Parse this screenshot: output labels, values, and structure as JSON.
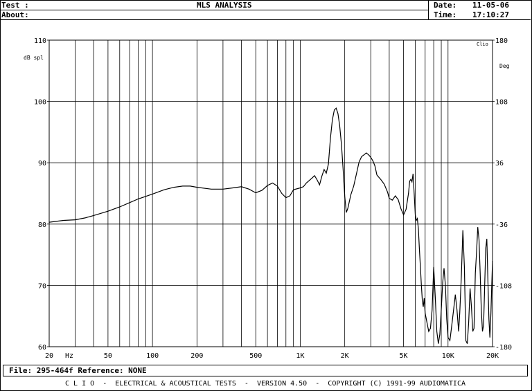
{
  "header": {
    "test_label": "Test :",
    "about_label": "About:",
    "title": "MLS ANALYSIS",
    "date_label": "Date:",
    "date_value": "11-05-06",
    "time_label": "Time:",
    "time_value": "17:10:27"
  },
  "file_bar": {
    "text": "File: 295-464f Reference: NONE"
  },
  "footer": {
    "text": "C L I O  -  ELECTRICAL & ACOUSTICAL TESTS  -  VERSION 4.50  -  COPYRIGHT (C) 1991-99 AUDIOMATICA"
  },
  "chart_data": {
    "type": "line",
    "x_scale": "log",
    "xlim": [
      20,
      20000
    ],
    "ylim": [
      60,
      110
    ],
    "y2lim": [
      -180,
      180
    ],
    "grid": true,
    "xlabel": "Hz",
    "ylabel": "dB spl",
    "y2label": "Deg",
    "corner_label": "Clio",
    "x_ticks": [
      {
        "v": 20,
        "label": "20"
      },
      {
        "v": 50,
        "label": "50"
      },
      {
        "v": 100,
        "label": "100"
      },
      {
        "v": 200,
        "label": "200"
      },
      {
        "v": 500,
        "label": "500"
      },
      {
        "v": 1000,
        "label": "1K"
      },
      {
        "v": 2000,
        "label": "2K"
      },
      {
        "v": 5000,
        "label": "5K"
      },
      {
        "v": 10000,
        "label": "10K"
      },
      {
        "v": 20000,
        "label": "20K"
      }
    ],
    "y_ticks": [
      60,
      70,
      80,
      90,
      100,
      110
    ],
    "y2_ticks": [
      -180,
      -108,
      -36,
      36,
      108,
      180
    ],
    "series": [
      {
        "color": "#000000",
        "points": [
          [
            20,
            80.3
          ],
          [
            25,
            80.6
          ],
          [
            30,
            80.7
          ],
          [
            35,
            81
          ],
          [
            40,
            81.4
          ],
          [
            50,
            82.1
          ],
          [
            60,
            82.8
          ],
          [
            70,
            83.5
          ],
          [
            80,
            84.1
          ],
          [
            100,
            84.9
          ],
          [
            120,
            85.6
          ],
          [
            140,
            86
          ],
          [
            160,
            86.2
          ],
          [
            180,
            86.2
          ],
          [
            200,
            86
          ],
          [
            250,
            85.7
          ],
          [
            300,
            85.7
          ],
          [
            350,
            85.9
          ],
          [
            400,
            86.1
          ],
          [
            450,
            85.7
          ],
          [
            500,
            85.1
          ],
          [
            550,
            85.5
          ],
          [
            600,
            86.3
          ],
          [
            650,
            86.7
          ],
          [
            700,
            86.2
          ],
          [
            750,
            85
          ],
          [
            800,
            84.3
          ],
          [
            850,
            84.6
          ],
          [
            900,
            85.6
          ],
          [
            1000,
            85.9
          ],
          [
            1050,
            86.1
          ],
          [
            1100,
            86.7
          ],
          [
            1200,
            87.5
          ],
          [
            1250,
            87.9
          ],
          [
            1300,
            87.2
          ],
          [
            1350,
            86.4
          ],
          [
            1400,
            87.8
          ],
          [
            1450,
            88.9
          ],
          [
            1500,
            88.3
          ],
          [
            1550,
            89.8
          ],
          [
            1600,
            94
          ],
          [
            1650,
            97
          ],
          [
            1700,
            98.6
          ],
          [
            1750,
            98.9
          ],
          [
            1800,
            98
          ],
          [
            1850,
            96
          ],
          [
            1900,
            93
          ],
          [
            1950,
            89
          ],
          [
            2000,
            84.5
          ],
          [
            2050,
            81.9
          ],
          [
            2100,
            82.6
          ],
          [
            2200,
            84.8
          ],
          [
            2300,
            86.2
          ],
          [
            2400,
            88.2
          ],
          [
            2500,
            90.1
          ],
          [
            2600,
            91
          ],
          [
            2700,
            91.3
          ],
          [
            2800,
            91.6
          ],
          [
            2900,
            91.3
          ],
          [
            3000,
            90.9
          ],
          [
            3100,
            90.3
          ],
          [
            3200,
            89.5
          ],
          [
            3300,
            88
          ],
          [
            3500,
            87.3
          ],
          [
            3700,
            86.5
          ],
          [
            3900,
            85.2
          ],
          [
            4000,
            84.2
          ],
          [
            4200,
            83.9
          ],
          [
            4400,
            84.6
          ],
          [
            4600,
            84
          ],
          [
            4800,
            82.5
          ],
          [
            5000,
            81.5
          ],
          [
            5200,
            82.4
          ],
          [
            5400,
            85
          ],
          [
            5500,
            87
          ],
          [
            5600,
            87.3
          ],
          [
            5700,
            86.9
          ],
          [
            5800,
            88.2
          ],
          [
            5900,
            85
          ],
          [
            6000,
            81.5
          ],
          [
            6100,
            80.6
          ],
          [
            6200,
            80.9
          ],
          [
            6300,
            79.2
          ],
          [
            6400,
            76
          ],
          [
            6500,
            73
          ],
          [
            6600,
            70
          ],
          [
            6700,
            67.5
          ],
          [
            6800,
            66.5
          ],
          [
            6900,
            67.9
          ],
          [
            7000,
            65.5
          ],
          [
            7200,
            64
          ],
          [
            7400,
            62.5
          ],
          [
            7600,
            63
          ],
          [
            7800,
            66
          ],
          [
            8000,
            73
          ],
          [
            8200,
            68
          ],
          [
            8400,
            62.5
          ],
          [
            8600,
            60.5
          ],
          [
            8800,
            62
          ],
          [
            9000,
            66
          ],
          [
            9200,
            70.5
          ],
          [
            9400,
            72.8
          ],
          [
            9600,
            70
          ],
          [
            9800,
            64.5
          ],
          [
            10000,
            61.5
          ],
          [
            10300,
            61
          ],
          [
            10600,
            63.5
          ],
          [
            10900,
            66
          ],
          [
            11200,
            68.5
          ],
          [
            11500,
            66
          ],
          [
            11800,
            62.5
          ],
          [
            12000,
            65.5
          ],
          [
            12300,
            71.5
          ],
          [
            12600,
            79
          ],
          [
            12900,
            73
          ],
          [
            13200,
            61
          ],
          [
            13500,
            60.5
          ],
          [
            13800,
            64
          ],
          [
            14100,
            69.5
          ],
          [
            14400,
            66.5
          ],
          [
            14700,
            62.5
          ],
          [
            15000,
            63
          ],
          [
            15300,
            72
          ],
          [
            15600,
            75.5
          ],
          [
            15900,
            79.5
          ],
          [
            16200,
            77.5
          ],
          [
            16500,
            72
          ],
          [
            16800,
            66
          ],
          [
            17100,
            62.5
          ],
          [
            17400,
            63.5
          ],
          [
            17700,
            70
          ],
          [
            18000,
            76
          ],
          [
            18300,
            77.6
          ],
          [
            18600,
            71
          ],
          [
            18900,
            64.5
          ],
          [
            19200,
            61.5
          ],
          [
            19500,
            65.5
          ],
          [
            19700,
            69
          ],
          [
            20000,
            74
          ]
        ]
      }
    ]
  }
}
